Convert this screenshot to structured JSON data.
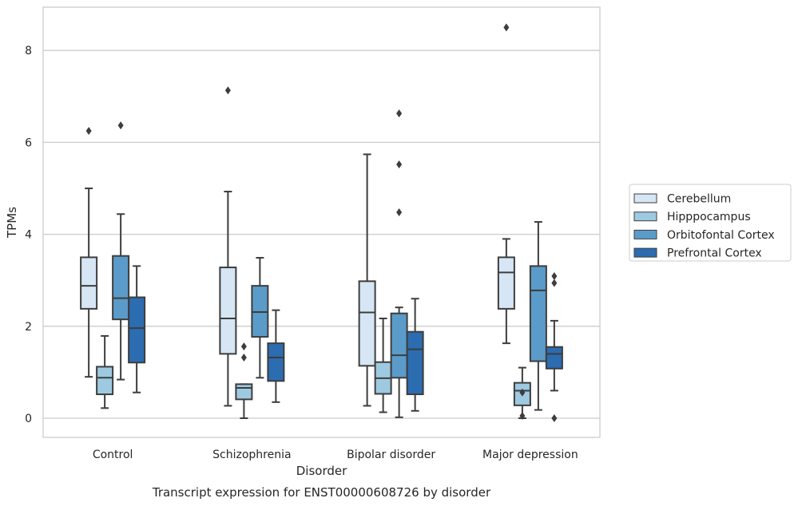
{
  "chart_data": {
    "type": "boxplot",
    "caption": "Transcript expression for ENST00000608726 by disorder",
    "xlabel": "Disorder",
    "ylabel": "TPMs",
    "ylim": [
      -0.4,
      9.0
    ],
    "yticks": [
      0,
      2,
      4,
      6,
      8
    ],
    "grid": true,
    "legend_position": "right",
    "categories": [
      "Control",
      "Schizophrenia",
      "Bipolar disorder",
      "Major depression"
    ],
    "series": [
      {
        "name": "Cerebellum",
        "color": "#d6e6f4",
        "boxes": [
          {
            "whisker_low": 0.9,
            "q1": 2.38,
            "median": 2.88,
            "q3": 3.5,
            "whisker_high": 5.0,
            "outliers": [
              6.25
            ]
          },
          {
            "whisker_low": 0.27,
            "q1": 1.4,
            "median": 2.17,
            "q3": 3.28,
            "whisker_high": 4.93,
            "outliers": [
              7.13
            ]
          },
          {
            "whisker_low": 0.27,
            "q1": 1.14,
            "median": 2.3,
            "q3": 2.98,
            "whisker_high": 5.74,
            "outliers": []
          },
          {
            "whisker_low": 1.63,
            "q1": 2.38,
            "median": 3.17,
            "q3": 3.5,
            "whisker_high": 3.9,
            "outliers": [
              8.5
            ]
          }
        ]
      },
      {
        "name": "Hipppocampus",
        "color": "#9ecae1",
        "boxes": [
          {
            "whisker_low": 0.22,
            "q1": 0.52,
            "median": 0.88,
            "q3": 1.12,
            "whisker_high": 1.79,
            "outliers": []
          },
          {
            "whisker_low": 0.0,
            "q1": 0.41,
            "median": 0.66,
            "q3": 0.74,
            "whisker_high": 0.74,
            "outliers": [
              1.32,
              1.56
            ]
          },
          {
            "whisker_low": 0.13,
            "q1": 0.53,
            "median": 0.87,
            "q3": 1.22,
            "whisker_high": 2.17,
            "outliers": []
          },
          {
            "whisker_low": 0.0,
            "q1": 0.28,
            "median": 0.6,
            "q3": 0.77,
            "whisker_high": 1.1,
            "outliers": [
              0.05,
              0.56
            ]
          }
        ]
      },
      {
        "name": "Orbitofontal Cortex",
        "color": "#5b9bc9",
        "boxes": [
          {
            "whisker_low": 0.84,
            "q1": 2.15,
            "median": 2.61,
            "q3": 3.53,
            "whisker_high": 4.44,
            "outliers": [
              6.37
            ]
          },
          {
            "whisker_low": 0.88,
            "q1": 1.77,
            "median": 2.31,
            "q3": 2.88,
            "whisker_high": 3.49,
            "outliers": []
          },
          {
            "whisker_low": 0.02,
            "q1": 0.88,
            "median": 1.37,
            "q3": 2.28,
            "whisker_high": 2.41,
            "outliers": [
              4.48,
              5.52,
              6.63
            ]
          },
          {
            "whisker_low": 0.18,
            "q1": 1.24,
            "median": 2.78,
            "q3": 3.31,
            "whisker_high": 4.27,
            "outliers": []
          }
        ]
      },
      {
        "name": "Prefrontal Cortex",
        "color": "#2c6cb0",
        "boxes": [
          {
            "whisker_low": 0.56,
            "q1": 1.21,
            "median": 1.96,
            "q3": 2.63,
            "whisker_high": 3.31,
            "outliers": []
          },
          {
            "whisker_low": 0.35,
            "q1": 0.81,
            "median": 1.32,
            "q3": 1.63,
            "whisker_high": 2.35,
            "outliers": []
          },
          {
            "whisker_low": 0.16,
            "q1": 0.52,
            "median": 1.5,
            "q3": 1.88,
            "whisker_high": 2.6,
            "outliers": []
          },
          {
            "whisker_low": 0.6,
            "q1": 1.08,
            "median": 1.4,
            "q3": 1.55,
            "whisker_high": 2.12,
            "outliers": [
              0.0,
              2.94,
              3.09
            ]
          }
        ]
      }
    ]
  }
}
